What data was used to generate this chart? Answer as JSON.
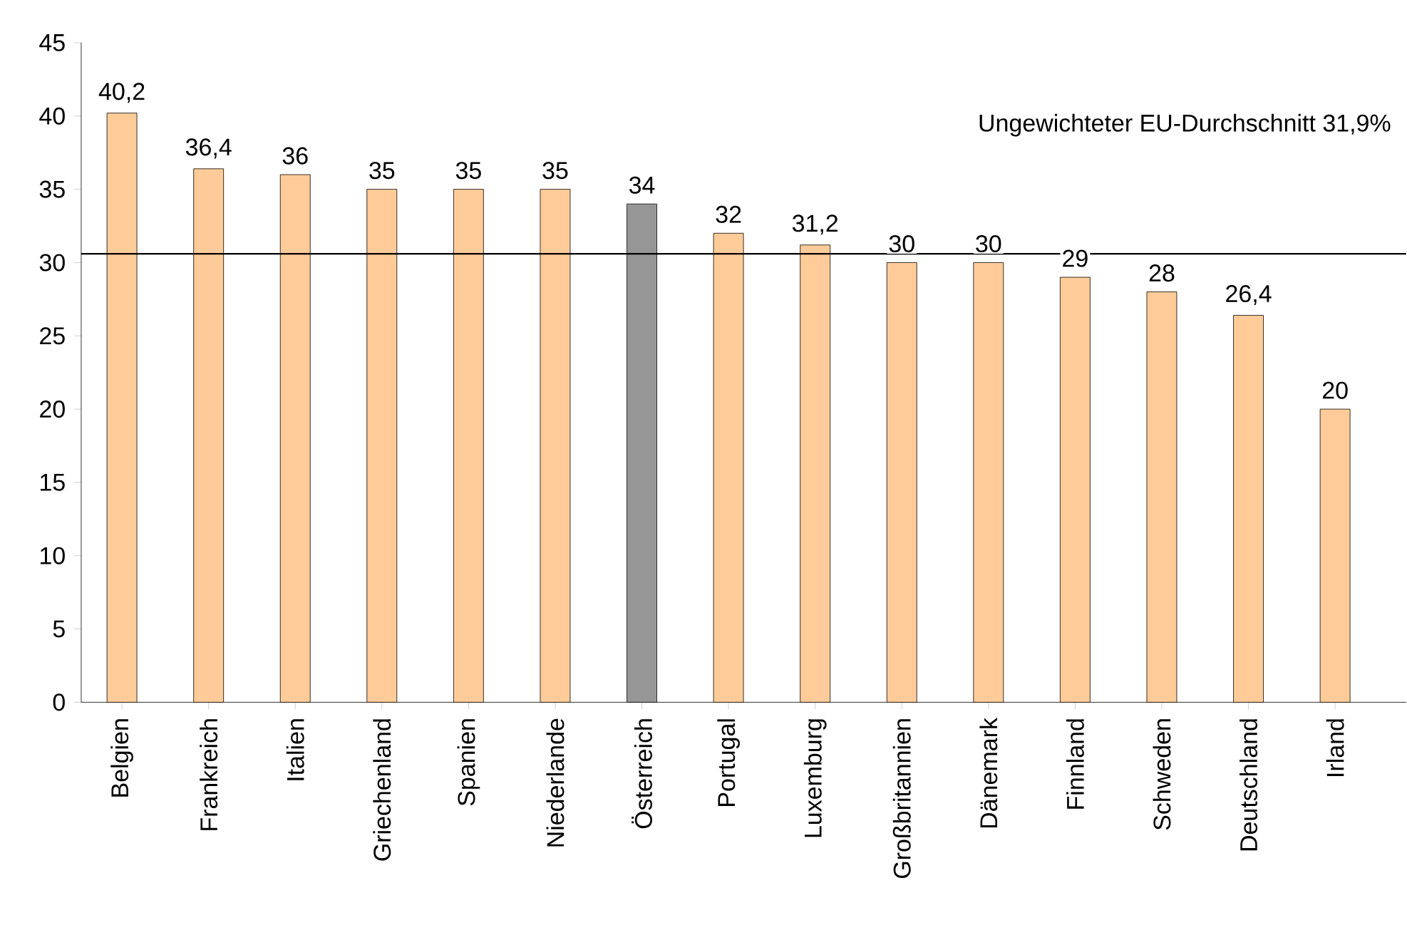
{
  "chart_data": {
    "type": "bar",
    "categories": [
      "Belgien",
      "Frankreich",
      "Italien",
      "Griechenland",
      "Spanien",
      "Niederlande",
      "Österreich",
      "Portugal",
      "Luxemburg",
      "Großbritannien",
      "Dänemark",
      "Finnland",
      "Schweden",
      "Deutschland",
      "Irland"
    ],
    "values": [
      40.2,
      36.4,
      36,
      35,
      35,
      35,
      34,
      32,
      31.2,
      30,
      30,
      29,
      28,
      26.4,
      20
    ],
    "value_labels": [
      "40,2",
      "36,4",
      "36",
      "35",
      "35",
      "35",
      "34",
      "32",
      "31,2",
      "30",
      "30",
      "29",
      "28",
      "26,4",
      "20"
    ],
    "colors": [
      "#ffcc99",
      "#ffcc99",
      "#ffcc99",
      "#ffcc99",
      "#ffcc99",
      "#ffcc99",
      "#969696",
      "#ffcc99",
      "#ffcc99",
      "#ffcc99",
      "#ffcc99",
      "#ffcc99",
      "#ffcc99",
      "#ffcc99",
      "#ffcc99"
    ],
    "ylim": [
      0,
      45
    ],
    "yticks": [
      0,
      5,
      10,
      15,
      20,
      25,
      30,
      35,
      40,
      45
    ],
    "ref_lines": [
      {
        "axis": "y",
        "value": 30.6,
        "label": "Ungewichteter EU-Durchschnitt 31,9%",
        "color": "#000000"
      }
    ],
    "grid": false
  }
}
